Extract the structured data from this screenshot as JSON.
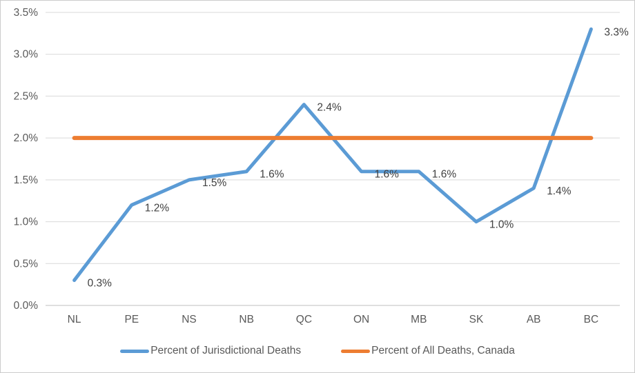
{
  "chart_data": {
    "type": "line",
    "title": "",
    "xlabel": "",
    "ylabel": "",
    "categories": [
      "NL",
      "PE",
      "NS",
      "NB",
      "QC",
      "ON",
      "MB",
      "SK",
      "AB",
      "BC"
    ],
    "series": [
      {
        "name": "Percent of Jurisdictional Deaths",
        "color": "#5B9BD5",
        "values": [
          0.3,
          1.2,
          1.5,
          1.6,
          2.4,
          1.6,
          1.6,
          1.0,
          1.4,
          3.3
        ],
        "data_labels": [
          "0.3%",
          "1.2%",
          "1.5%",
          "1.6%",
          "2.4%",
          "1.6%",
          "1.6%",
          "1.0%",
          "1.4%",
          "3.3%"
        ]
      },
      {
        "name": "Percent of All Deaths, Canada",
        "color": "#ED7D31",
        "values": [
          2.0,
          2.0,
          2.0,
          2.0,
          2.0,
          2.0,
          2.0,
          2.0,
          2.0,
          2.0
        ],
        "data_labels": null
      }
    ],
    "ylim": [
      0,
      3.5
    ],
    "ytick_step": 0.5,
    "ytick_labels": [
      "0.0%",
      "0.5%",
      "1.0%",
      "1.5%",
      "2.0%",
      "2.5%",
      "3.0%",
      "3.5%"
    ],
    "grid": true,
    "legend_position": "bottom"
  },
  "colors": {
    "series_blue": "#5B9BD5",
    "series_orange": "#ED7D31",
    "gridline": "#D9D9D9",
    "axis_line": "#BFBFBF",
    "tick_text": "#595959",
    "data_label_text": "#404040",
    "frame_border": "#CBCBCB",
    "background": "#FFFFFF"
  }
}
